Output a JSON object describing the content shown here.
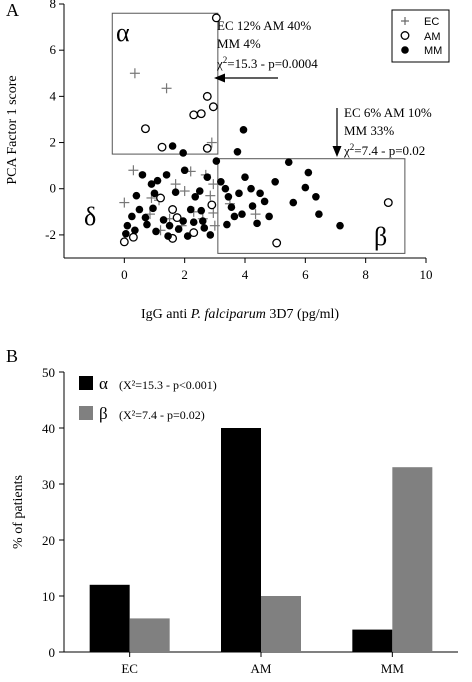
{
  "panel_a": {
    "letter": "A",
    "ylabel": "PCA Factor 1 score",
    "xlabel_pre": "IgG anti ",
    "xlabel_italic": "P. falciparum",
    "xlabel_post": " 3D7 (pg/ml)",
    "legend": [
      {
        "label": "EC",
        "marker": "plus"
      },
      {
        "label": "AM",
        "marker": "open-circle"
      },
      {
        "label": "MM",
        "marker": "filled-circle"
      }
    ],
    "region_labels": {
      "alpha": "α",
      "beta": "β",
      "delta": "δ"
    },
    "annotation_alpha": {
      "line1": "EC 12% AM 40%",
      "line2": "MM 4%",
      "chi_symbol": "χ",
      "chi_exp": "2",
      "chi_rest": "=15.3 - p=0.0004"
    },
    "annotation_beta": {
      "line1": "EC 6% AM 10%",
      "line2": "MM 33%",
      "chi_symbol": "χ",
      "chi_exp": "2",
      "chi_rest": "=7.4 - p=0.02"
    }
  },
  "panel_b": {
    "letter": "B",
    "ylabel": "% of patients",
    "legend": [
      {
        "symbol": "α",
        "text": "(X²=15.3 - p<0.001)",
        "color": "#000000"
      },
      {
        "symbol": "β",
        "text": "(X²=7.4 - p=0.02)",
        "color": "#808080"
      }
    ]
  },
  "chart_data": [
    {
      "type": "scatter",
      "title": "",
      "xlabel": "IgG anti P. falciparum 3D7 (pg/ml)",
      "ylabel": "PCA Factor 1 score",
      "xlim": [
        -2,
        10
      ],
      "ylim": [
        -3,
        8
      ],
      "x_ticks": [
        "0",
        "2",
        "4",
        "6",
        "8",
        "10"
      ],
      "y_ticks": [
        "-2",
        "0",
        "2",
        "4",
        "6",
        "8"
      ],
      "grid": false,
      "legend_position": "top-right",
      "regions": [
        {
          "name": "α",
          "x": [
            -0.4,
            3.1
          ],
          "y": [
            1.5,
            7.6
          ]
        },
        {
          "name": "β",
          "x": [
            3.1,
            9.3
          ],
          "y": [
            -2.8,
            1.3
          ]
        }
      ],
      "series": [
        {
          "name": "EC",
          "marker": "plus",
          "points": [
            [
              0.35,
              5.0
            ],
            [
              1.4,
              4.35
            ],
            [
              0.3,
              0.8
            ],
            [
              0.0,
              -0.6
            ],
            [
              0.9,
              -0.4
            ],
            [
              1.15,
              -0.5
            ],
            [
              0.85,
              -1.1
            ],
            [
              1.5,
              -1.3
            ],
            [
              2.0,
              -0.1
            ],
            [
              2.2,
              0.75
            ],
            [
              2.6,
              -1.3
            ],
            [
              2.95,
              0.2
            ],
            [
              2.85,
              -0.3
            ],
            [
              2.95,
              -1.05
            ],
            [
              3.0,
              -1.6
            ],
            [
              2.9,
              2.0
            ],
            [
              3.5,
              -0.65
            ],
            [
              4.35,
              -1.1
            ],
            [
              1.7,
              0.2
            ],
            [
              2.3,
              -1.0
            ],
            [
              1.9,
              -1.6
            ],
            [
              1.2,
              -1.8
            ],
            [
              2.7,
              0.6
            ]
          ]
        },
        {
          "name": "AM",
          "marker": "open-circle",
          "points": [
            [
              3.05,
              7.4
            ],
            [
              0.7,
              2.6
            ],
            [
              1.25,
              1.8
            ],
            [
              2.3,
              3.2
            ],
            [
              2.55,
              3.25
            ],
            [
              2.75,
              4.0
            ],
            [
              2.95,
              3.55
            ],
            [
              2.75,
              1.75
            ],
            [
              0.0,
              -2.3
            ],
            [
              0.3,
              -2.1
            ],
            [
              1.2,
              -0.4
            ],
            [
              1.6,
              -0.9
            ],
            [
              1.75,
              -1.25
            ],
            [
              2.3,
              -1.9
            ],
            [
              2.9,
              -0.7
            ],
            [
              5.05,
              -2.35
            ],
            [
              8.75,
              -0.6
            ],
            [
              1.6,
              -2.15
            ]
          ]
        },
        {
          "name": "MM",
          "marker": "filled-circle",
          "points": [
            [
              1.6,
              1.85
            ],
            [
              1.95,
              1.55
            ],
            [
              2.0,
              0.8
            ],
            [
              1.4,
              0.6
            ],
            [
              0.9,
              0.2
            ],
            [
              1.1,
              0.35
            ],
            [
              1.0,
              -0.2
            ],
            [
              0.4,
              -0.3
            ],
            [
              0.5,
              -0.9
            ],
            [
              0.25,
              -1.2
            ],
            [
              0.1,
              -1.6
            ],
            [
              0.05,
              -1.95
            ],
            [
              0.35,
              -1.8
            ],
            [
              0.7,
              -1.25
            ],
            [
              0.95,
              -0.85
            ],
            [
              0.75,
              -1.55
            ],
            [
              1.05,
              -1.85
            ],
            [
              1.3,
              -1.35
            ],
            [
              1.5,
              -1.6
            ],
            [
              1.45,
              -2.05
            ],
            [
              1.8,
              -1.75
            ],
            [
              1.95,
              -1.4
            ],
            [
              2.1,
              -2.05
            ],
            [
              2.3,
              -1.45
            ],
            [
              2.2,
              -0.9
            ],
            [
              2.35,
              -0.35
            ],
            [
              2.55,
              -0.95
            ],
            [
              2.6,
              -1.4
            ],
            [
              2.5,
              -0.1
            ],
            [
              2.75,
              0.5
            ],
            [
              3.2,
              0.3
            ],
            [
              3.35,
              0.0
            ],
            [
              3.45,
              -0.35
            ],
            [
              3.55,
              -0.8
            ],
            [
              3.65,
              -1.2
            ],
            [
              3.9,
              -1.1
            ],
            [
              3.8,
              -0.2
            ],
            [
              4.0,
              0.5
            ],
            [
              4.2,
              0.0
            ],
            [
              4.25,
              -0.75
            ],
            [
              4.5,
              -0.2
            ],
            [
              4.65,
              -0.55
            ],
            [
              4.8,
              -1.2
            ],
            [
              5.0,
              0.3
            ],
            [
              5.45,
              1.15
            ],
            [
              5.6,
              -0.6
            ],
            [
              6.0,
              0.05
            ],
            [
              6.1,
              0.7
            ],
            [
              6.35,
              -0.35
            ],
            [
              6.45,
              -1.1
            ],
            [
              7.15,
              -1.6
            ],
            [
              3.95,
              2.55
            ],
            [
              3.75,
              1.6
            ],
            [
              3.05,
              1.2
            ],
            [
              3.4,
              -1.55
            ],
            [
              4.4,
              -1.5
            ],
            [
              0.6,
              0.6
            ],
            [
              1.7,
              -0.15
            ],
            [
              2.85,
              -2.0
            ],
            [
              2.65,
              -1.7
            ]
          ]
        }
      ]
    },
    {
      "type": "bar",
      "title": "",
      "xlabel": "",
      "ylabel": "% of patients",
      "categories": [
        "EC",
        "AM",
        "MM"
      ],
      "ylim": [
        0,
        50
      ],
      "y_ticks": [
        "0",
        "10",
        "20",
        "30",
        "40",
        "50"
      ],
      "grid": false,
      "legend_position": "top-left",
      "series": [
        {
          "name": "α",
          "color": "#000000",
          "values": [
            12,
            40,
            4
          ]
        },
        {
          "name": "β",
          "color": "#808080",
          "values": [
            6,
            10,
            33
          ]
        }
      ]
    }
  ]
}
